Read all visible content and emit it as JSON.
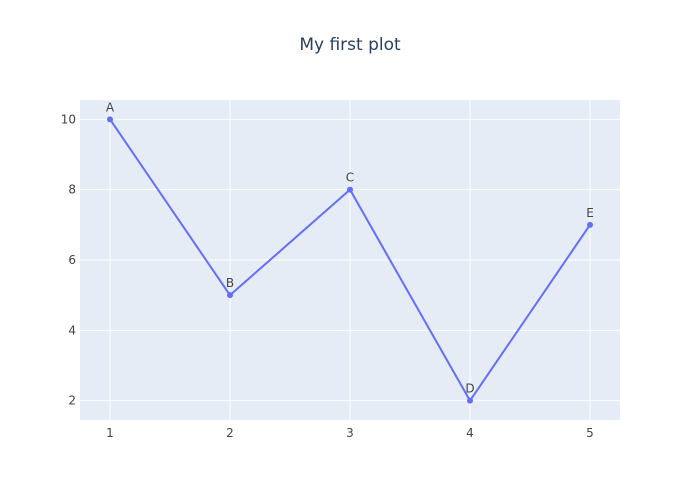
{
  "chart_data": {
    "type": "line",
    "title": "My first plot",
    "xlabel": "",
    "ylabel": "",
    "x": [
      1,
      2,
      3,
      4,
      5
    ],
    "series": [
      {
        "values": [
          10,
          5,
          8,
          2,
          7
        ],
        "point_labels": [
          "A",
          "B",
          "C",
          "D",
          "E"
        ],
        "color": "#636efa",
        "mode": "lines+markers+text"
      }
    ],
    "xticks": [
      "1",
      "2",
      "3",
      "4",
      "5"
    ],
    "yticks": [
      "2",
      "4",
      "6",
      "8",
      "10"
    ],
    "xlim": [
      0.75,
      5.25
    ],
    "ylim": [
      1.45,
      10.55
    ],
    "grid": true,
    "legend": "none",
    "plot_background": "#e5ecf6",
    "gridline_color": "#ffffff",
    "paper_background": "#ffffff"
  }
}
